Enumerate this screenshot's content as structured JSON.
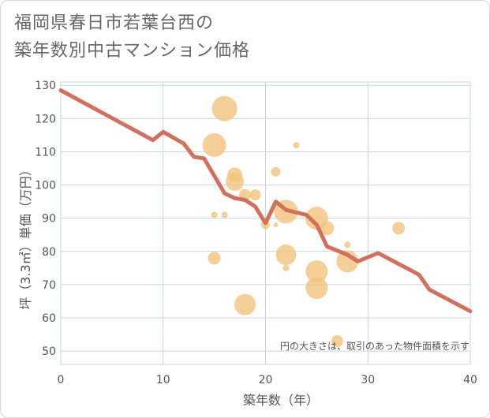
{
  "title_line1": "福岡県春日市若葉台西の",
  "title_line2": "築年数別中古マンション価格",
  "chart_data": {
    "type": "scatter",
    "xlabel": "築年数（年）",
    "ylabel": "坪（3.3㎡）単価（万円）",
    "xlim": [
      0,
      40
    ],
    "ylim": [
      46,
      131
    ],
    "xticks": [
      0,
      10,
      20,
      30,
      40
    ],
    "yticks": [
      50,
      60,
      70,
      80,
      90,
      100,
      110,
      120,
      130
    ],
    "grid": true,
    "note": "円の大きさは、取引のあった物件面積を示す",
    "colors": {
      "bubble": "#f2c47c",
      "line": "#d46f5c",
      "grid": "#c8d4e4"
    },
    "bubbles": [
      {
        "x": 16,
        "y": 123,
        "size": 3.2
      },
      {
        "x": 15,
        "y": 112,
        "size": 3.0
      },
      {
        "x": 23,
        "y": 112,
        "size": 0.8
      },
      {
        "x": 21,
        "y": 104,
        "size": 1.2
      },
      {
        "x": 17,
        "y": 103,
        "size": 1.9
      },
      {
        "x": 17,
        "y": 101,
        "size": 2.3
      },
      {
        "x": 18,
        "y": 97,
        "size": 1.5
      },
      {
        "x": 19,
        "y": 97,
        "size": 1.4
      },
      {
        "x": 15,
        "y": 91,
        "size": 0.8
      },
      {
        "x": 16,
        "y": 91,
        "size": 0.8
      },
      {
        "x": 22,
        "y": 92,
        "size": 3.0
      },
      {
        "x": 25,
        "y": 90,
        "size": 2.9
      },
      {
        "x": 20,
        "y": 88,
        "size": 1.1
      },
      {
        "x": 21,
        "y": 88,
        "size": 0.6
      },
      {
        "x": 26,
        "y": 87,
        "size": 1.8
      },
      {
        "x": 33,
        "y": 87,
        "size": 1.6
      },
      {
        "x": 28,
        "y": 82,
        "size": 0.8
      },
      {
        "x": 22,
        "y": 79,
        "size": 2.6
      },
      {
        "x": 15,
        "y": 78,
        "size": 1.6
      },
      {
        "x": 28,
        "y": 77,
        "size": 2.8
      },
      {
        "x": 22,
        "y": 75,
        "size": 0.8
      },
      {
        "x": 25,
        "y": 74,
        "size": 2.8
      },
      {
        "x": 25,
        "y": 69,
        "size": 2.8
      },
      {
        "x": 18,
        "y": 64,
        "size": 2.7
      },
      {
        "x": 27,
        "y": 53,
        "size": 1.5
      }
    ],
    "line": {
      "x": [
        0,
        9,
        10,
        12,
        13,
        14,
        16,
        17,
        18,
        19,
        20,
        21,
        22,
        24,
        25,
        26,
        28,
        29,
        31,
        35,
        36,
        40
      ],
      "y": [
        128.5,
        113.5,
        116,
        112.5,
        108.5,
        108,
        97.5,
        96,
        95.5,
        93.5,
        88.5,
        95,
        92.5,
        91,
        88,
        81.5,
        79,
        77,
        79.5,
        73,
        68.5,
        62
      ]
    }
  }
}
